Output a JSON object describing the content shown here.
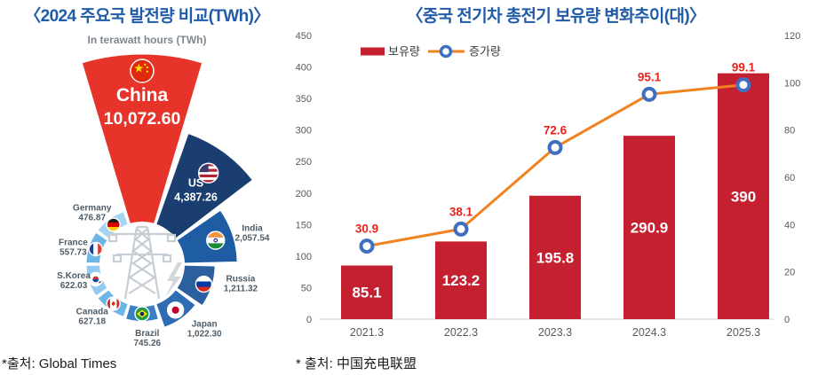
{
  "left_panel": {
    "source": "*출처: Global Times"
  },
  "right_panel": {
    "source": "* 출처: 中国充电联盟",
    "legend": {
      "bar_label": "보유량",
      "line_label": "증가량"
    }
  },
  "chart_data": [
    {
      "type": "radial-fan",
      "title": "〈2024 주요국 발전량 비교(TWh)〉",
      "subtitle": "In terawatt hours (TWh)",
      "unit": "TWh",
      "categories": [
        "China",
        "US",
        "India",
        "Russia",
        "Japan",
        "Brazil",
        "Canada",
        "S.Korea",
        "France",
        "Germany"
      ],
      "values": [
        10072.6,
        4387.26,
        2057.54,
        1211.32,
        1022.3,
        745.26,
        627.18,
        622.03,
        557.73,
        476.87
      ],
      "value_labels": [
        "10,072.60",
        "4,387.26",
        "2,057.54",
        "1,211.32",
        "1,022.30",
        "745.26",
        "627.18",
        "622.03",
        "557.73",
        "476.87"
      ],
      "colors": [
        "#e6342b",
        "#1b3e70",
        "#1e5ca4",
        "#2b5f9e",
        "#2e6cb4",
        "#3b80c4",
        "#6db6e4",
        "#93cbee",
        "#6db6e4",
        "#a6d5f1"
      ],
      "flags": [
        "cn",
        "us",
        "in",
        "ru",
        "jp",
        "br",
        "ca",
        "kr",
        "fr",
        "de"
      ],
      "center_icons": [
        "transmission-tower",
        "lightning-bolt"
      ],
      "label_color_outside": "#4d5c68"
    },
    {
      "type": "bar+line",
      "title": "〈중국 전기차 총전기 보유량 변화추이(대)〉",
      "categories": [
        "2021.3",
        "2022.3",
        "2023.3",
        "2024.3",
        "2025.3"
      ],
      "series": [
        {
          "name": "보유량",
          "type": "bar",
          "axis": "left",
          "color": "#c5202f",
          "values": [
            85.1,
            123.2,
            195.8,
            290.9,
            390
          ],
          "labels": [
            "85.1",
            "123.2",
            "195.8",
            "290.9",
            "390"
          ]
        },
        {
          "name": "증가량",
          "type": "line",
          "axis": "right",
          "color": "#f0821f",
          "marker_color": "#3f6fc1",
          "point_label_color": "#e8231a",
          "values": [
            30.9,
            38.1,
            72.6,
            95.1,
            99.1
          ],
          "labels": [
            "30.9",
            "38.1",
            "72.6",
            "95.1",
            "99.1"
          ]
        }
      ],
      "left_axis": {
        "min": 0,
        "max": 450,
        "step": 50,
        "ticks": [
          "0",
          "50",
          "100",
          "150",
          "200",
          "250",
          "300",
          "350",
          "400",
          "450"
        ]
      },
      "right_axis": {
        "min": 0,
        "max": 120,
        "step": 20,
        "ticks": [
          "0",
          "20",
          "40",
          "60",
          "80",
          "100",
          "120"
        ]
      },
      "legend_position": "top-left",
      "grid": false
    }
  ]
}
